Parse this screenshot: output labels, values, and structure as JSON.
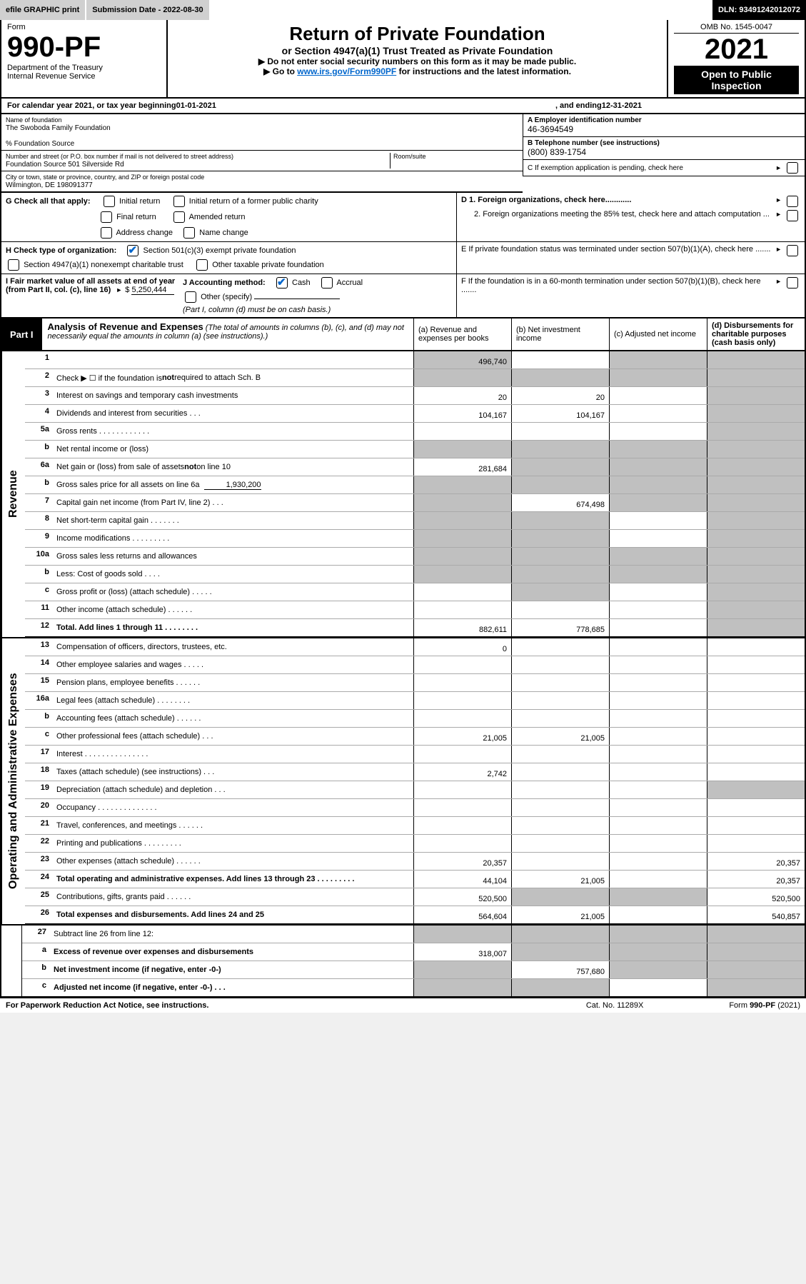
{
  "topbar": {
    "efile": "efile GRAPHIC print",
    "sub_label": "Submission Date - 2022-08-30",
    "dln": "DLN: 93491242012072"
  },
  "header": {
    "form_word": "Form",
    "form_no": "990-PF",
    "dept1": "Department of the Treasury",
    "dept2": "Internal Revenue Service",
    "title": "Return of Private Foundation",
    "subtitle": "or Section 4947(a)(1) Trust Treated as Private Foundation",
    "note1": "▶ Do not enter social security numbers on this form as it may be made public.",
    "note2_pre": "▶ Go to ",
    "note2_link": "www.irs.gov/Form990PF",
    "note2_post": " for instructions and the latest information.",
    "omb": "OMB No. 1545-0047",
    "year": "2021",
    "open": "Open to Public Inspection"
  },
  "cal": {
    "pre": "For calendar year 2021, or tax year beginning ",
    "begin": "01-01-2021",
    "mid": " , and ending ",
    "end": "12-31-2021"
  },
  "info": {
    "name_label": "Name of foundation",
    "name": "The Swoboda Family Foundation",
    "care_of": "% Foundation Source",
    "addr_label": "Number and street (or P.O. box number if mail is not delivered to street address)",
    "addr": "Foundation Source 501 Silverside Rd",
    "room_label": "Room/suite",
    "city_label": "City or town, state or province, country, and ZIP or foreign postal code",
    "city": "Wilmington, DE  198091377",
    "a_label": "A Employer identification number",
    "a_val": "46-3694549",
    "b_label": "B Telephone number (see instructions)",
    "b_val": "(800) 839-1754",
    "c_label": "C If exemption application is pending, check here",
    "d1": "D 1. Foreign organizations, check here............",
    "d2": "2. Foreign organizations meeting the 85% test, check here and attach computation ...",
    "e": "E  If private foundation status was terminated under section 507(b)(1)(A), check here .......",
    "f": "F  If the foundation is in a 60-month termination under section 507(b)(1)(B), check here .......",
    "g_label": "G Check all that apply:",
    "g_opts": [
      "Initial return",
      "Initial return of a former public charity",
      "Final return",
      "Amended return",
      "Address change",
      "Name change"
    ],
    "h_label": "H Check type of organization:",
    "h_opt1": "Section 501(c)(3) exempt private foundation",
    "h_opt2": "Section 4947(a)(1) nonexempt charitable trust",
    "h_opt3": "Other taxable private foundation",
    "i_label": "I Fair market value of all assets at end of year (from Part II, col. (c), line 16)",
    "i_val": "5,250,444",
    "j_label": "J Accounting method:",
    "j_cash": "Cash",
    "j_accrual": "Accrual",
    "j_other": "Other (specify)",
    "j_note": "(Part I, column (d) must be on cash basis.)"
  },
  "part1": {
    "tab": "Part I",
    "title": "Analysis of Revenue and Expenses",
    "title_note": " (The total of amounts in columns (b), (c), and (d) may not necessarily equal the amounts in column (a) (see instructions).)",
    "col_a": "(a)   Revenue and expenses per books",
    "col_b": "(b)   Net investment income",
    "col_c": "(c)   Adjusted net income",
    "col_d": "(d)   Disbursements for charitable purposes (cash basis only)"
  },
  "side": {
    "rev": "Revenue",
    "exp": "Operating and Administrative Expenses"
  },
  "rows": {
    "r1": {
      "n": "1",
      "d": "",
      "a": "496,740",
      "b": "",
      "c": "",
      "ga": true,
      "gc": true,
      "gd": true
    },
    "r2": {
      "n": "2",
      "d": "Check ▶ ☐ if the foundation is not required to attach Sch. B",
      "ga": true,
      "gb": true,
      "gc": true,
      "gd": true
    },
    "r3": {
      "n": "3",
      "d": "Interest on savings and temporary cash investments",
      "a": "20",
      "b": "20",
      "gc": false,
      "gd": true
    },
    "r4": {
      "n": "4",
      "d": "Dividends and interest from securities   .  .  .",
      "a": "104,167",
      "b": "104,167",
      "gd": true
    },
    "r5a": {
      "n": "5a",
      "d": "Gross rents    .  .  .  .  .  .  .  .  .  .  .  .",
      "gd": true
    },
    "r5b": {
      "n": "b",
      "d": "Net rental income or (loss)",
      "ga": true,
      "gb": true,
      "gc": true,
      "gd": true
    },
    "r6a": {
      "n": "6a",
      "d": "Net gain or (loss) from sale of assets not on line 10",
      "a": "281,684",
      "gb": true,
      "gc": true,
      "gd": true
    },
    "r6b": {
      "n": "b",
      "d": "Gross sales price for all assets on line 6a",
      "sub": "1,930,200",
      "ga": true,
      "gb": true,
      "gc": true,
      "gd": true
    },
    "r7": {
      "n": "7",
      "d": "Capital gain net income (from Part IV, line 2)   .  .  .",
      "ga": true,
      "b": "674,498",
      "gc": true,
      "gd": true
    },
    "r8": {
      "n": "8",
      "d": "Net short-term capital gain   .  .  .  .  .  .  .",
      "ga": true,
      "gb": true,
      "gd": true
    },
    "r9": {
      "n": "9",
      "d": "Income modifications  .  .  .  .  .  .  .  .  .",
      "ga": true,
      "gb": true,
      "gd": true
    },
    "r10a": {
      "n": "10a",
      "d": "Gross sales less returns and allowances",
      "ga": true,
      "gb": true,
      "gc": true,
      "gd": true
    },
    "r10b": {
      "n": "b",
      "d": "Less: Cost of goods sold    .  .  .  .",
      "ga": true,
      "gb": true,
      "gc": true,
      "gd": true
    },
    "r10c": {
      "n": "c",
      "d": "Gross profit or (loss) (attach schedule)    .  .  .  .  .",
      "gb": true,
      "gd": true
    },
    "r11": {
      "n": "11",
      "d": "Other income (attach schedule)    .  .  .  .  .  .",
      "gd": true
    },
    "r12": {
      "n": "12",
      "d": "Total. Add lines 1 through 11    .  .  .  .  .  .  .  .",
      "bold": true,
      "a": "882,611",
      "b": "778,685",
      "gd": true
    },
    "r13": {
      "n": "13",
      "d": "Compensation of officers, directors, trustees, etc.",
      "a": "0"
    },
    "r14": {
      "n": "14",
      "d": "Other employee salaries and wages    .  .  .  .  ."
    },
    "r15": {
      "n": "15",
      "d": "Pension plans, employee benefits  .  .  .  .  .  ."
    },
    "r16a": {
      "n": "16a",
      "d": "Legal fees (attach schedule)  .  .  .  .  .  .  .  ."
    },
    "r16b": {
      "n": "b",
      "d": "Accounting fees (attach schedule)  .  .  .  .  .  ."
    },
    "r16c": {
      "n": "c",
      "d": "Other professional fees (attach schedule)    .  .  .",
      "a": "21,005",
      "b": "21,005"
    },
    "r17": {
      "n": "17",
      "d": "Interest  .  .  .  .  .  .  .  .  .  .  .  .  .  .  ."
    },
    "r18": {
      "n": "18",
      "d": "Taxes (attach schedule) (see instructions)    .  .  .",
      "a": "2,742"
    },
    "r19": {
      "n": "19",
      "d": "Depreciation (attach schedule) and depletion    .  .  .",
      "gd": true
    },
    "r20": {
      "n": "20",
      "d": "Occupancy  .  .  .  .  .  .  .  .  .  .  .  .  .  ."
    },
    "r21": {
      "n": "21",
      "d": "Travel, conferences, and meetings  .  .  .  .  .  ."
    },
    "r22": {
      "n": "22",
      "d": "Printing and publications  .  .  .  .  .  .  .  .  ."
    },
    "r23": {
      "n": "23",
      "d": "Other expenses (attach schedule)  .  .  .  .  .  .",
      "a": "20,357",
      "d4": "20,357"
    },
    "r24": {
      "n": "24",
      "d": "Total operating and administrative expenses. Add lines 13 through 23   .  .  .  .  .  .  .  .  .",
      "bold": true,
      "a": "44,104",
      "b": "21,005",
      "d4": "20,357"
    },
    "r25": {
      "n": "25",
      "d": "Contributions, gifts, grants paid    .  .  .  .  .  .",
      "a": "520,500",
      "gb": true,
      "gc": true,
      "d4": "520,500"
    },
    "r26": {
      "n": "26",
      "d": "Total expenses and disbursements. Add lines 24 and 25",
      "bold": true,
      "a": "564,604",
      "b": "21,005",
      "d4": "540,857"
    },
    "r27": {
      "n": "27",
      "d": "Subtract line 26 from line 12:",
      "ga": true,
      "gb": true,
      "gc": true,
      "gd": true
    },
    "r27a": {
      "n": "a",
      "d": "Excess of revenue over expenses and disbursements",
      "bold": true,
      "a": "318,007",
      "gb": true,
      "gc": true,
      "gd": true
    },
    "r27b": {
      "n": "b",
      "d": "Net investment income (if negative, enter -0-)",
      "bold": true,
      "ga": true,
      "b": "757,680",
      "gc": true,
      "gd": true
    },
    "r27c": {
      "n": "c",
      "d": "Adjusted net income (if negative, enter -0-)    .  .  .",
      "bold": true,
      "ga": true,
      "gb": true,
      "gd": true
    }
  },
  "footer": {
    "left": "For Paperwork Reduction Act Notice, see instructions.",
    "mid": "Cat. No. 11289X",
    "right": "Form 990-PF (2021)"
  }
}
